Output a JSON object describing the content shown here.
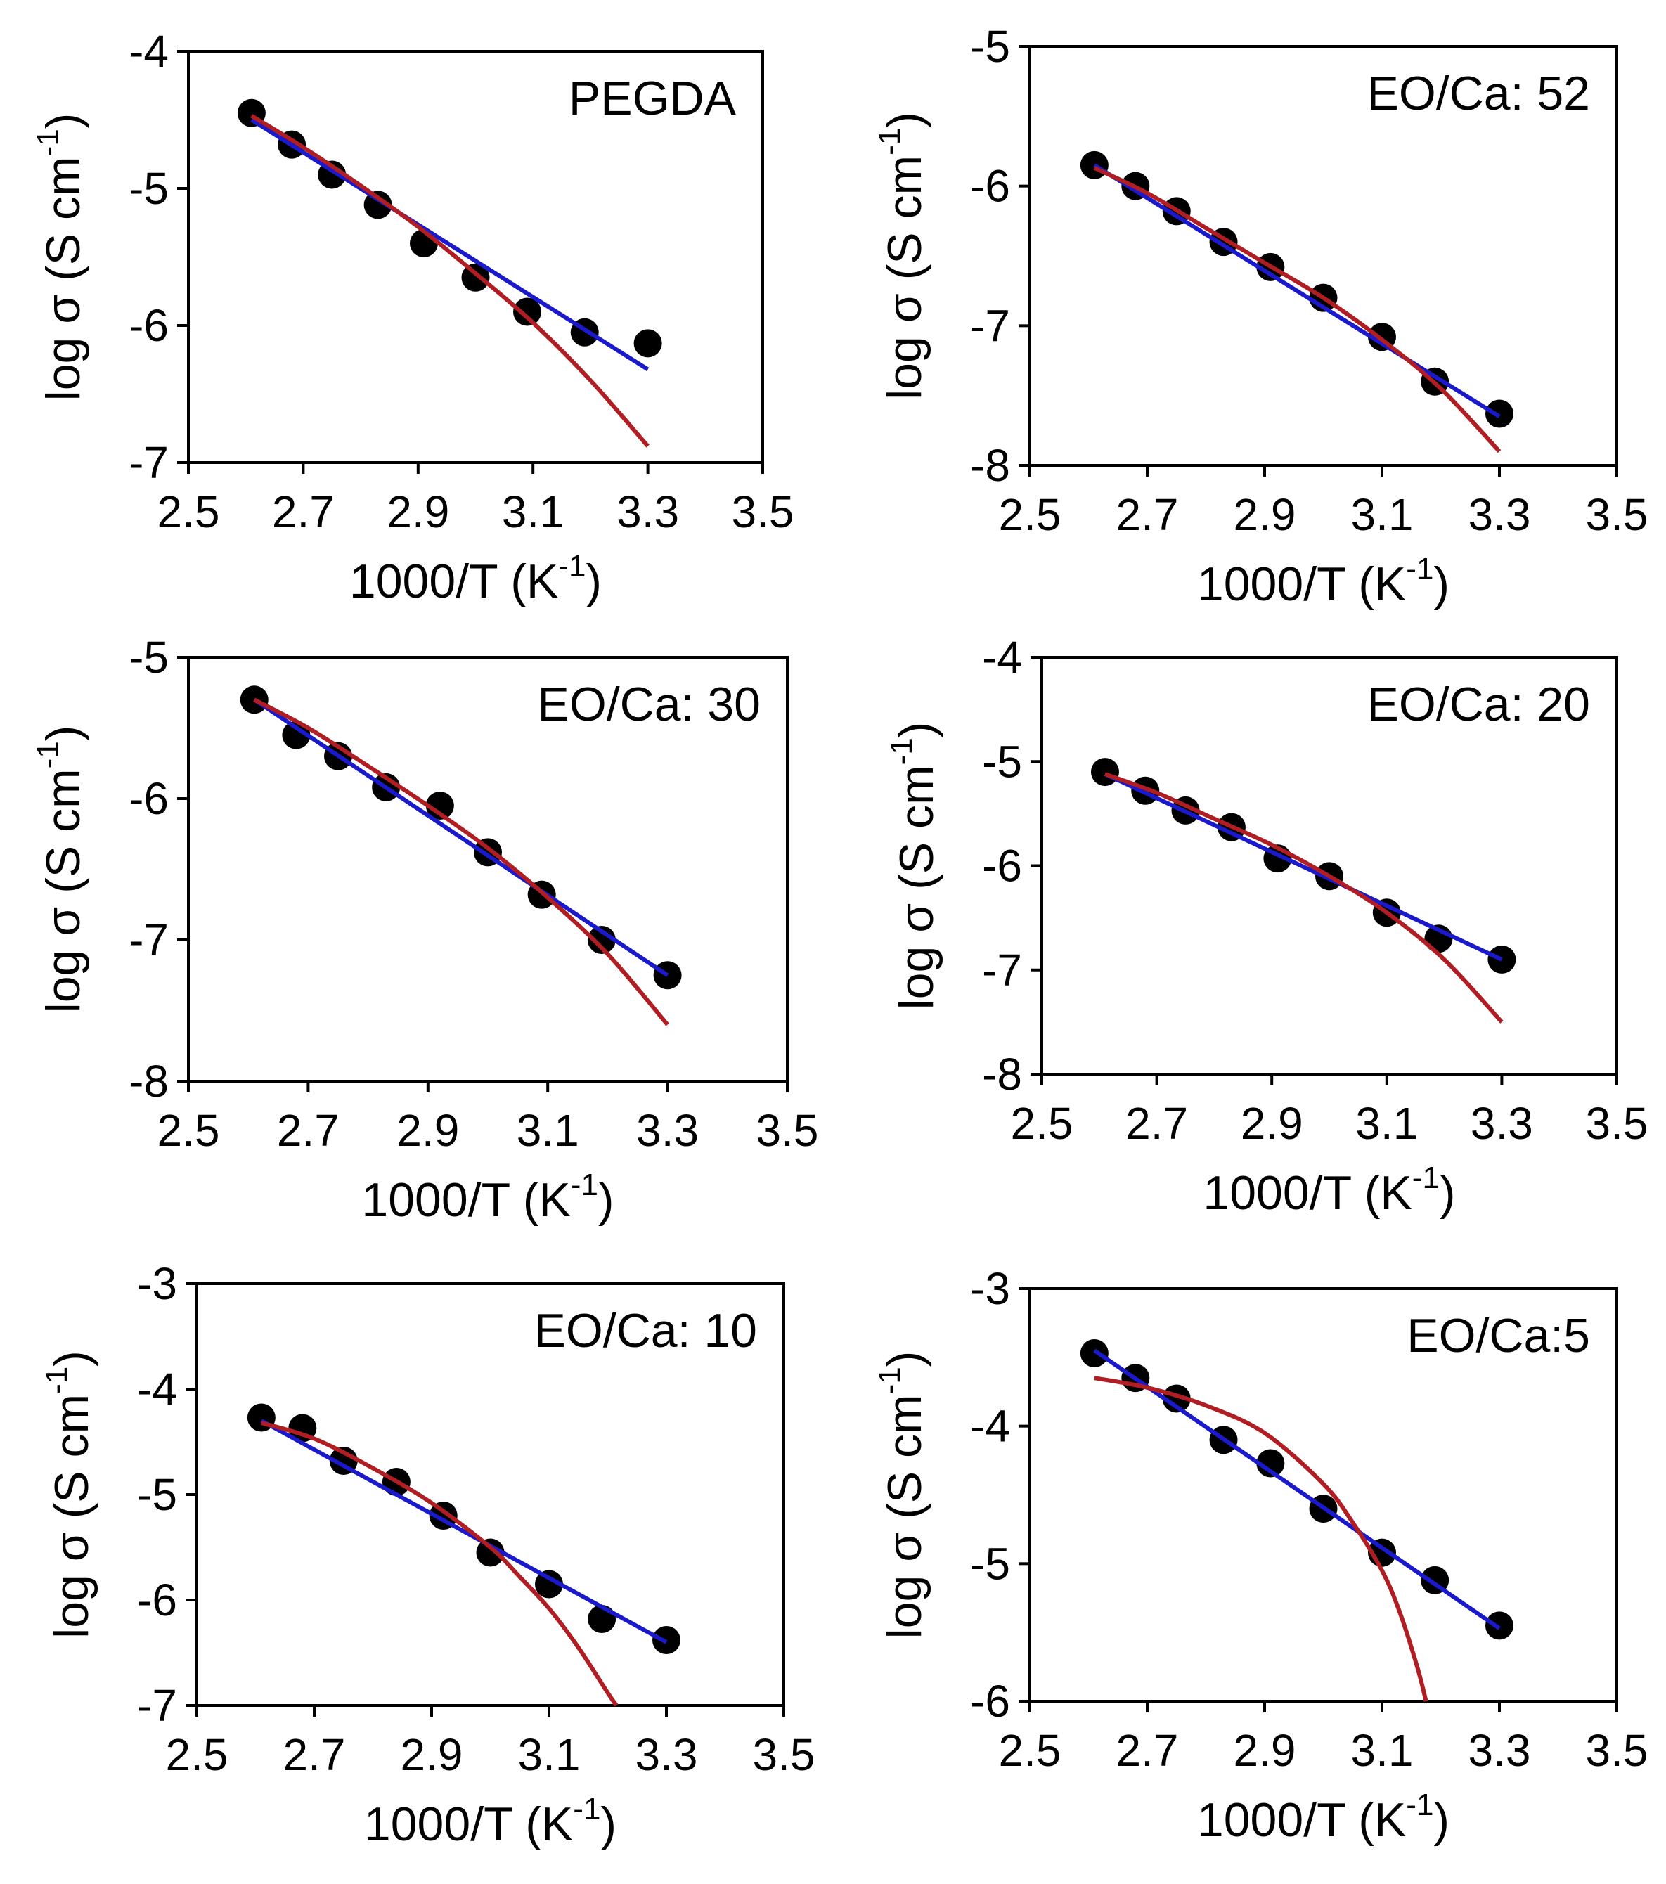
{
  "colors": {
    "points": "#000000",
    "linear_fit": "#1a1acc",
    "vtf_fit": "#b01e23",
    "axis": "#000000"
  },
  "chart_data": [
    {
      "type": "scatter",
      "title": "PEGDA",
      "xlabel": "1000/T (K",
      "xlabel_sup": "-1",
      "xlabel_close": ")",
      "ylabel": "log σ (S cm",
      "ylabel_sup": "-1",
      "ylabel_close": ")",
      "xlim": [
        2.5,
        3.5
      ],
      "ylim": [
        -7,
        -4
      ],
      "xticks": [
        "2.5",
        "2.7",
        "2.9",
        "3.1",
        "3.3",
        "3.5"
      ],
      "yticks": [
        "-4",
        "-5",
        "-6",
        "-7"
      ],
      "x": [
        2.61,
        2.68,
        2.75,
        2.83,
        2.91,
        3.0,
        3.09,
        3.19,
        3.3
      ],
      "y": [
        -4.45,
        -4.68,
        -4.9,
        -5.12,
        -5.4,
        -5.65,
        -5.9,
        -6.05,
        -6.13
      ],
      "linear_fit": {
        "x": [
          2.61,
          3.3
        ],
        "y": [
          -4.5,
          -6.32
        ]
      },
      "vtf_fit": {
        "x": [
          2.61,
          2.7,
          2.8,
          2.9,
          3.0,
          3.1,
          3.2,
          3.3
        ],
        "y": [
          -4.47,
          -4.7,
          -4.98,
          -5.28,
          -5.62,
          -5.98,
          -6.4,
          -6.88
        ]
      }
    },
    {
      "type": "scatter",
      "title": "EO/Ca: 52",
      "xlabel": "1000/T (K",
      "xlabel_sup": "-1",
      "xlabel_close": ")",
      "ylabel": "log σ (S cm",
      "ylabel_sup": "-1",
      "ylabel_close": ")",
      "xlim": [
        2.5,
        3.5
      ],
      "ylim": [
        -8,
        -5
      ],
      "xticks": [
        "2.5",
        "2.7",
        "2.9",
        "3.1",
        "3.3",
        "3.5"
      ],
      "yticks": [
        "-5",
        "-6",
        "-7",
        "-8"
      ],
      "x": [
        2.61,
        2.68,
        2.75,
        2.83,
        2.91,
        3.0,
        3.1,
        3.19,
        3.3
      ],
      "y": [
        -5.85,
        -6.0,
        -6.18,
        -6.4,
        -6.58,
        -6.8,
        -7.08,
        -7.4,
        -7.63
      ],
      "linear_fit": {
        "x": [
          2.61,
          3.3
        ],
        "y": [
          -5.85,
          -7.65
        ]
      },
      "vtf_fit": {
        "x": [
          2.61,
          2.7,
          2.8,
          2.9,
          3.0,
          3.1,
          3.2,
          3.3
        ],
        "y": [
          -5.87,
          -6.05,
          -6.3,
          -6.55,
          -6.8,
          -7.1,
          -7.45,
          -7.9
        ]
      }
    },
    {
      "type": "scatter",
      "title": "EO/Ca: 30",
      "xlabel": "1000/T (K",
      "xlabel_sup": "-1",
      "xlabel_close": ")",
      "ylabel": "log σ (S cm",
      "ylabel_sup": "-1",
      "ylabel_close": ")",
      "xlim": [
        2.5,
        3.5
      ],
      "ylim": [
        -8,
        -5
      ],
      "xticks": [
        "2.5",
        "2.7",
        "2.9",
        "3.1",
        "3.3",
        "3.5"
      ],
      "yticks": [
        "-5",
        "-6",
        "-7",
        "-8"
      ],
      "x": [
        2.61,
        2.68,
        2.75,
        2.83,
        2.92,
        3.0,
        3.09,
        3.19,
        3.3
      ],
      "y": [
        -5.3,
        -5.55,
        -5.7,
        -5.92,
        -6.05,
        -6.38,
        -6.68,
        -7.0,
        -7.25
      ],
      "linear_fit": {
        "x": [
          2.61,
          3.3
        ],
        "y": [
          -5.3,
          -7.25
        ]
      },
      "vtf_fit": {
        "x": [
          2.61,
          2.7,
          2.8,
          2.9,
          3.0,
          3.1,
          3.2,
          3.3
        ],
        "y": [
          -5.3,
          -5.5,
          -5.77,
          -6.05,
          -6.35,
          -6.7,
          -7.1,
          -7.6
        ]
      }
    },
    {
      "type": "scatter",
      "title": "EO/Ca: 20",
      "xlabel": "1000/T (K",
      "xlabel_sup": "-1",
      "xlabel_close": ")",
      "ylabel": "log σ (S cm",
      "ylabel_sup": "-1",
      "ylabel_close": ")",
      "xlim": [
        2.5,
        3.5
      ],
      "ylim": [
        -8,
        -4
      ],
      "xticks": [
        "2.5",
        "2.7",
        "2.9",
        "3.1",
        "3.3",
        "3.5"
      ],
      "yticks": [
        "-4",
        "-5",
        "-6",
        "-7",
        "-8"
      ],
      "x": [
        2.61,
        2.68,
        2.75,
        2.83,
        2.91,
        3.0,
        3.1,
        3.19,
        3.3
      ],
      "y": [
        -5.1,
        -5.28,
        -5.47,
        -5.63,
        -5.93,
        -6.1,
        -6.45,
        -6.7,
        -6.9
      ],
      "linear_fit": {
        "x": [
          2.61,
          3.3
        ],
        "y": [
          -5.12,
          -6.9
        ]
      },
      "vtf_fit": {
        "x": [
          2.61,
          2.7,
          2.8,
          2.9,
          3.0,
          3.1,
          3.2,
          3.3
        ],
        "y": [
          -5.12,
          -5.3,
          -5.55,
          -5.8,
          -6.1,
          -6.45,
          -6.9,
          -7.5
        ]
      }
    },
    {
      "type": "scatter",
      "title": "EO/Ca: 10",
      "xlabel": "1000/T (K",
      "xlabel_sup": "-1",
      "xlabel_close": ")",
      "ylabel": "log σ (S cm",
      "ylabel_sup": "-1",
      "ylabel_close": ")",
      "xlim": [
        2.5,
        3.5
      ],
      "ylim": [
        -7,
        -3
      ],
      "xticks": [
        "2.5",
        "2.7",
        "2.9",
        "3.1",
        "3.3",
        "3.5"
      ],
      "yticks": [
        "-3",
        "-4",
        "-5",
        "-6",
        "-7"
      ],
      "x": [
        2.61,
        2.68,
        2.75,
        2.84,
        2.92,
        3.0,
        3.1,
        3.19,
        3.3
      ],
      "y": [
        -4.27,
        -4.37,
        -4.68,
        -4.88,
        -5.2,
        -5.55,
        -5.85,
        -6.18,
        -6.38
      ],
      "linear_fit": {
        "x": [
          2.61,
          3.3
        ],
        "y": [
          -4.3,
          -6.4
        ]
      },
      "vtf_fit": {
        "x": [
          2.61,
          2.7,
          2.8,
          2.9,
          3.0,
          3.05,
          3.1,
          3.15,
          3.2,
          3.215
        ],
        "y": [
          -4.32,
          -4.47,
          -4.75,
          -5.08,
          -5.5,
          -5.78,
          -6.08,
          -6.45,
          -6.88,
          -7.0
        ]
      }
    },
    {
      "type": "scatter",
      "title": "EO/Ca:5",
      "xlabel": "1000/T (K",
      "xlabel_sup": "-1",
      "xlabel_close": ")",
      "ylabel": "log σ (S cm",
      "ylabel_sup": "-1",
      "ylabel_close": ")",
      "xlim": [
        2.5,
        3.5
      ],
      "ylim": [
        -6,
        -3
      ],
      "xticks": [
        "2.5",
        "2.7",
        "2.9",
        "3.1",
        "3.3",
        "3.5"
      ],
      "yticks": [
        "-3",
        "-4",
        "-5",
        "-6"
      ],
      "x": [
        2.61,
        2.68,
        2.75,
        2.83,
        2.91,
        3.0,
        3.1,
        3.19,
        3.3
      ],
      "y": [
        -3.47,
        -3.65,
        -3.8,
        -4.1,
        -4.27,
        -4.6,
        -4.92,
        -5.12,
        -5.45
      ],
      "linear_fit": {
        "x": [
          2.61,
          3.3
        ],
        "y": [
          -3.45,
          -5.47
        ]
      },
      "vtf_fit": {
        "x": [
          2.61,
          2.7,
          2.8,
          2.9,
          3.0,
          3.05,
          3.1,
          3.13,
          3.16,
          3.175
        ],
        "y": [
          -3.65,
          -3.72,
          -3.85,
          -4.05,
          -4.42,
          -4.7,
          -5.05,
          -5.35,
          -5.75,
          -6.0
        ]
      }
    }
  ]
}
